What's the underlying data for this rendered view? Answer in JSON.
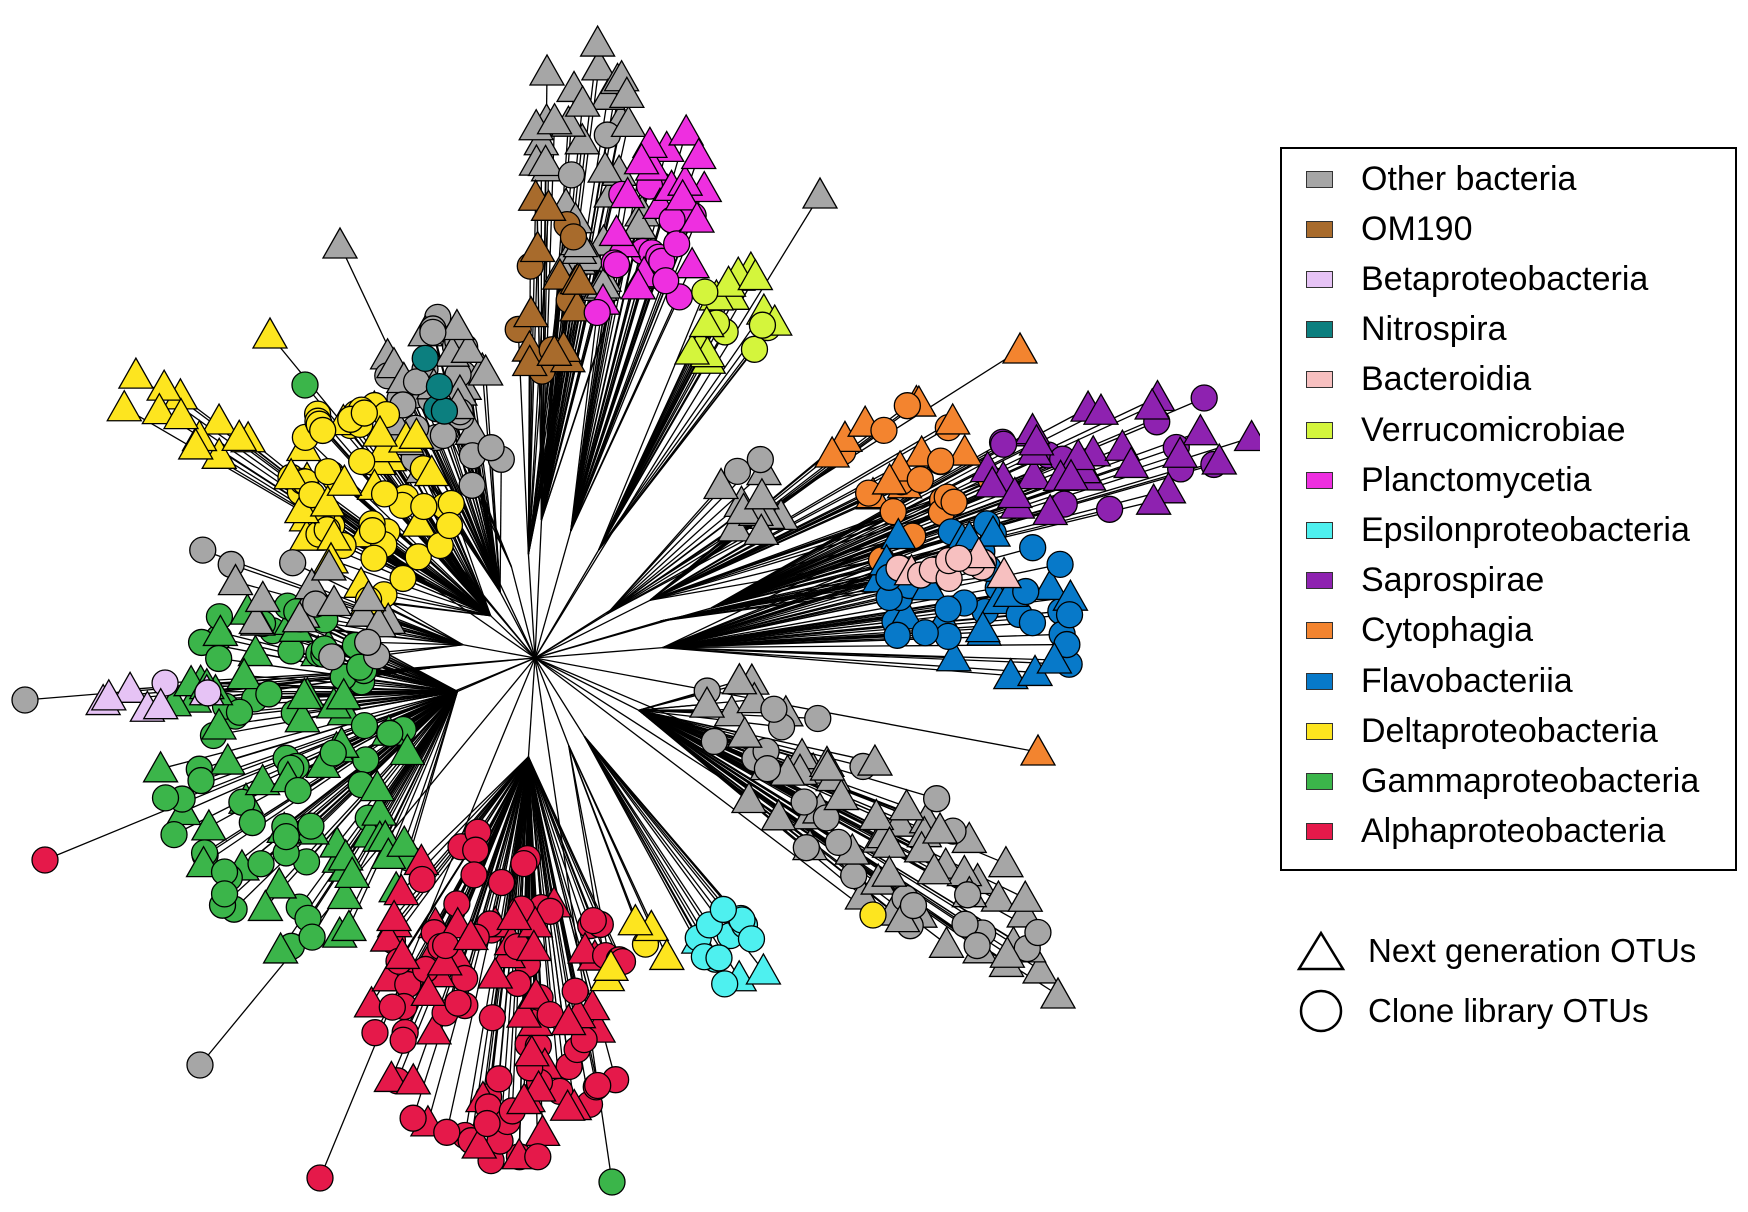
{
  "legend": {
    "items": [
      {
        "label": "Other bacteria",
        "color": "#a6a6a6"
      },
      {
        "label": "OM190",
        "color": "#a86b2c"
      },
      {
        "label": "Betaproteobacteria",
        "color": "#e6c3f5"
      },
      {
        "label": "Nitrospira",
        "color": "#0c7f7f"
      },
      {
        "label": "Bacteroidia",
        "color": "#f7c0c0"
      },
      {
        "label": "Verrucomicrobiae",
        "color": "#d4f53c"
      },
      {
        "label": "Planctomycetia",
        "color": "#ee2fe0"
      },
      {
        "label": "Epsilonproteobacteria",
        "color": "#4ef0ef"
      },
      {
        "label": "Saprospirae",
        "color": "#8e22b0"
      },
      {
        "label": "Cytophagia",
        "color": "#f3842f"
      },
      {
        "label": "Flavobacteriia",
        "color": "#0779c9"
      },
      {
        "label": "Deltaproteobacteria",
        "color": "#fde51f"
      },
      {
        "label": "Gammaproteobacteria",
        "color": "#3bb54a"
      },
      {
        "label": "Alphaproteobacteria",
        "color": "#e5194a"
      }
    ],
    "shapes": [
      {
        "label": "Next generation OTUs",
        "shape": "triangle"
      },
      {
        "label": "Clone library OTUs",
        "shape": "circle"
      }
    ]
  }
}
